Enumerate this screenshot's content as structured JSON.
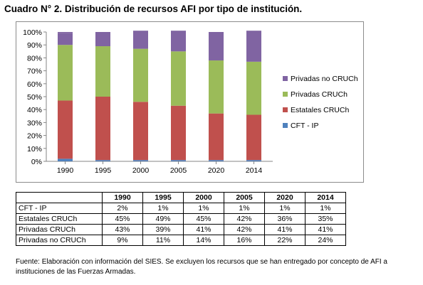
{
  "title": "Cuadro N° 2. Distribución de recursos AFI por tipo de institución.",
  "chart_data": {
    "type": "bar",
    "stacked": true,
    "percent": true,
    "categories": [
      "1990",
      "1995",
      "2000",
      "2005",
      "2020",
      "2014"
    ],
    "series": [
      {
        "name": "CFT - IP",
        "values": [
          2,
          1,
          1,
          1,
          1,
          1
        ],
        "color": "#4f81bd"
      },
      {
        "name": "Estatales CRUCh",
        "values": [
          45,
          49,
          45,
          42,
          36,
          35
        ],
        "color": "#c0504d"
      },
      {
        "name": "Privadas CRUCh",
        "values": [
          43,
          39,
          41,
          42,
          41,
          41
        ],
        "color": "#9bbb59"
      },
      {
        "name": "Privadas no CRUCh",
        "values": [
          9,
          11,
          14,
          16,
          22,
          24
        ],
        "color": "#8064a2"
      }
    ],
    "y_ticks": [
      "0%",
      "10%",
      "20%",
      "30%",
      "40%",
      "50%",
      "60%",
      "70%",
      "80%",
      "90%",
      "100%"
    ],
    "ylim": [
      0,
      100
    ],
    "grid": false,
    "legend_position": "right"
  },
  "table": {
    "header": [
      "",
      "1990",
      "1995",
      "2000",
      "2005",
      "2020",
      "2014"
    ],
    "rows": [
      {
        "label": "CFT - IP",
        "values": [
          "2%",
          "1%",
          "1%",
          "1%",
          "1%",
          "1%"
        ]
      },
      {
        "label": "Estatales CRUCh",
        "values": [
          "45%",
          "49%",
          "45%",
          "42%",
          "36%",
          "35%"
        ]
      },
      {
        "label": "Privadas CRUCh",
        "values": [
          "43%",
          "39%",
          "41%",
          "42%",
          "41%",
          "41%"
        ]
      },
      {
        "label": "Privadas no CRUCh",
        "values": [
          "9%",
          "11%",
          "14%",
          "16%",
          "22%",
          "24%"
        ]
      }
    ]
  },
  "source": "Fuente: Elaboración con información del SIES. Se excluyen los recursos que se han entregado por concepto de AFI a instituciones de las Fuerzas Armadas."
}
